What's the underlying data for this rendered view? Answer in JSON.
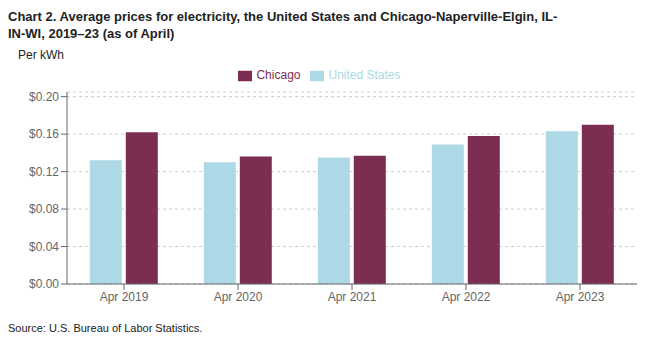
{
  "chart_data": {
    "type": "bar",
    "title": "Chart 2. Average prices for electricity, the United States and Chicago-Naperville-Elgin, IL-\nIN-WI, 2019–23 (as of April)",
    "ylabel": "Per kWh",
    "source": "Source: U.S. Bureau of Labor Statistics.",
    "categories": [
      "Apr 2019",
      "Apr 2020",
      "Apr 2021",
      "Apr 2022",
      "Apr 2023"
    ],
    "series": [
      {
        "name": "United States",
        "color": "#ADD8E6",
        "values": [
          0.132,
          0.13,
          0.135,
          0.149,
          0.163
        ]
      },
      {
        "name": "Chicago",
        "color": "#7B2D52",
        "values": [
          0.162,
          0.136,
          0.137,
          0.158,
          0.17
        ]
      }
    ],
    "ylim": [
      0,
      0.205
    ],
    "yticks": [
      {
        "value": 0.0,
        "label": "$0.00"
      },
      {
        "value": 0.04,
        "label": "$0.04"
      },
      {
        "value": 0.08,
        "label": "$0.08"
      },
      {
        "value": 0.12,
        "label": "$0.12"
      },
      {
        "value": 0.16,
        "label": "$0.16"
      },
      {
        "value": 0.2,
        "label": "$0.20"
      }
    ],
    "grid": true,
    "legend": "top"
  }
}
